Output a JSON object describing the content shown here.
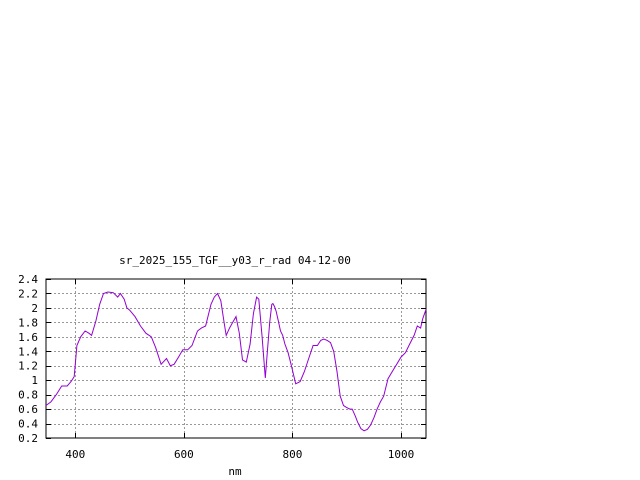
{
  "chart_data": {
    "type": "line",
    "title": "sr_2025_155_TGF__y03_r_rad 04-12-00",
    "xlabel": "nm",
    "ylabel": "",
    "xlim": [
      346,
      1046
    ],
    "ylim": [
      0.2,
      2.4
    ],
    "xticks": [
      400,
      600,
      800,
      1000
    ],
    "xtick_labels": [
      "400",
      "600",
      "800",
      "1000"
    ],
    "yticks": [
      0.2,
      0.4,
      0.6,
      0.8,
      1.0,
      1.2,
      1.4,
      1.6,
      1.8,
      2.0,
      2.2,
      2.4
    ],
    "ytick_labels": [
      "0.2",
      "0.4",
      "0.6",
      "0.8",
      "1",
      "1.2",
      "1.4",
      "1.6",
      "1.8",
      "2",
      "2.2",
      "2.4"
    ],
    "grid": true,
    "line_color": "#9400d3",
    "series": [
      {
        "x": [
          346,
          355,
          365,
          375,
          385,
          392,
          398,
          403,
          410,
          418,
          425,
          430,
          438,
          445,
          452,
          460,
          470,
          478,
          483,
          490,
          495,
          500,
          510,
          520,
          530,
          540,
          548,
          558,
          568,
          575,
          582,
          590,
          598,
          607,
          615,
          625,
          632,
          640,
          650,
          656,
          662,
          668,
          674,
          678,
          684,
          690,
          696,
          702,
          708,
          715,
          722,
          728,
          734,
          738,
          744,
          750,
          754,
          758,
          762,
          764,
          767,
          770,
          774,
          778,
          782,
          786,
          792,
          798,
          806,
          814,
          822,
          830,
          838,
          846,
          852,
          858,
          864,
          870,
          876,
          882,
          888,
          894,
          900,
          906,
          910,
          916,
          920,
          926,
          932,
          938,
          944,
          950,
          956,
          962,
          968,
          976,
          984,
          992,
          1000,
          1008,
          1016,
          1024,
          1030,
          1036,
          1040,
          1046
        ],
        "y": [
          0.65,
          0.7,
          0.8,
          0.92,
          0.92,
          0.98,
          1.05,
          1.48,
          1.6,
          1.68,
          1.65,
          1.62,
          1.82,
          2.05,
          2.2,
          2.22,
          2.21,
          2.15,
          2.2,
          2.12,
          2.0,
          1.97,
          1.88,
          1.75,
          1.65,
          1.6,
          1.45,
          1.22,
          1.3,
          1.2,
          1.22,
          1.32,
          1.42,
          1.42,
          1.48,
          1.68,
          1.72,
          1.75,
          2.05,
          2.15,
          2.2,
          2.1,
          1.8,
          1.62,
          1.72,
          1.8,
          1.88,
          1.65,
          1.28,
          1.25,
          1.5,
          1.92,
          2.15,
          2.12,
          1.6,
          1.03,
          1.42,
          1.8,
          2.05,
          2.06,
          2.02,
          1.95,
          1.82,
          1.68,
          1.62,
          1.5,
          1.38,
          1.2,
          0.95,
          0.98,
          1.12,
          1.3,
          1.48,
          1.48,
          1.55,
          1.57,
          1.55,
          1.52,
          1.4,
          1.12,
          0.78,
          0.65,
          0.62,
          0.6,
          0.6,
          0.5,
          0.42,
          0.33,
          0.3,
          0.32,
          0.38,
          0.48,
          0.6,
          0.7,
          0.78,
          1.02,
          1.12,
          1.22,
          1.32,
          1.38,
          1.5,
          1.62,
          1.75,
          1.72,
          1.85,
          1.98
        ]
      }
    ]
  }
}
